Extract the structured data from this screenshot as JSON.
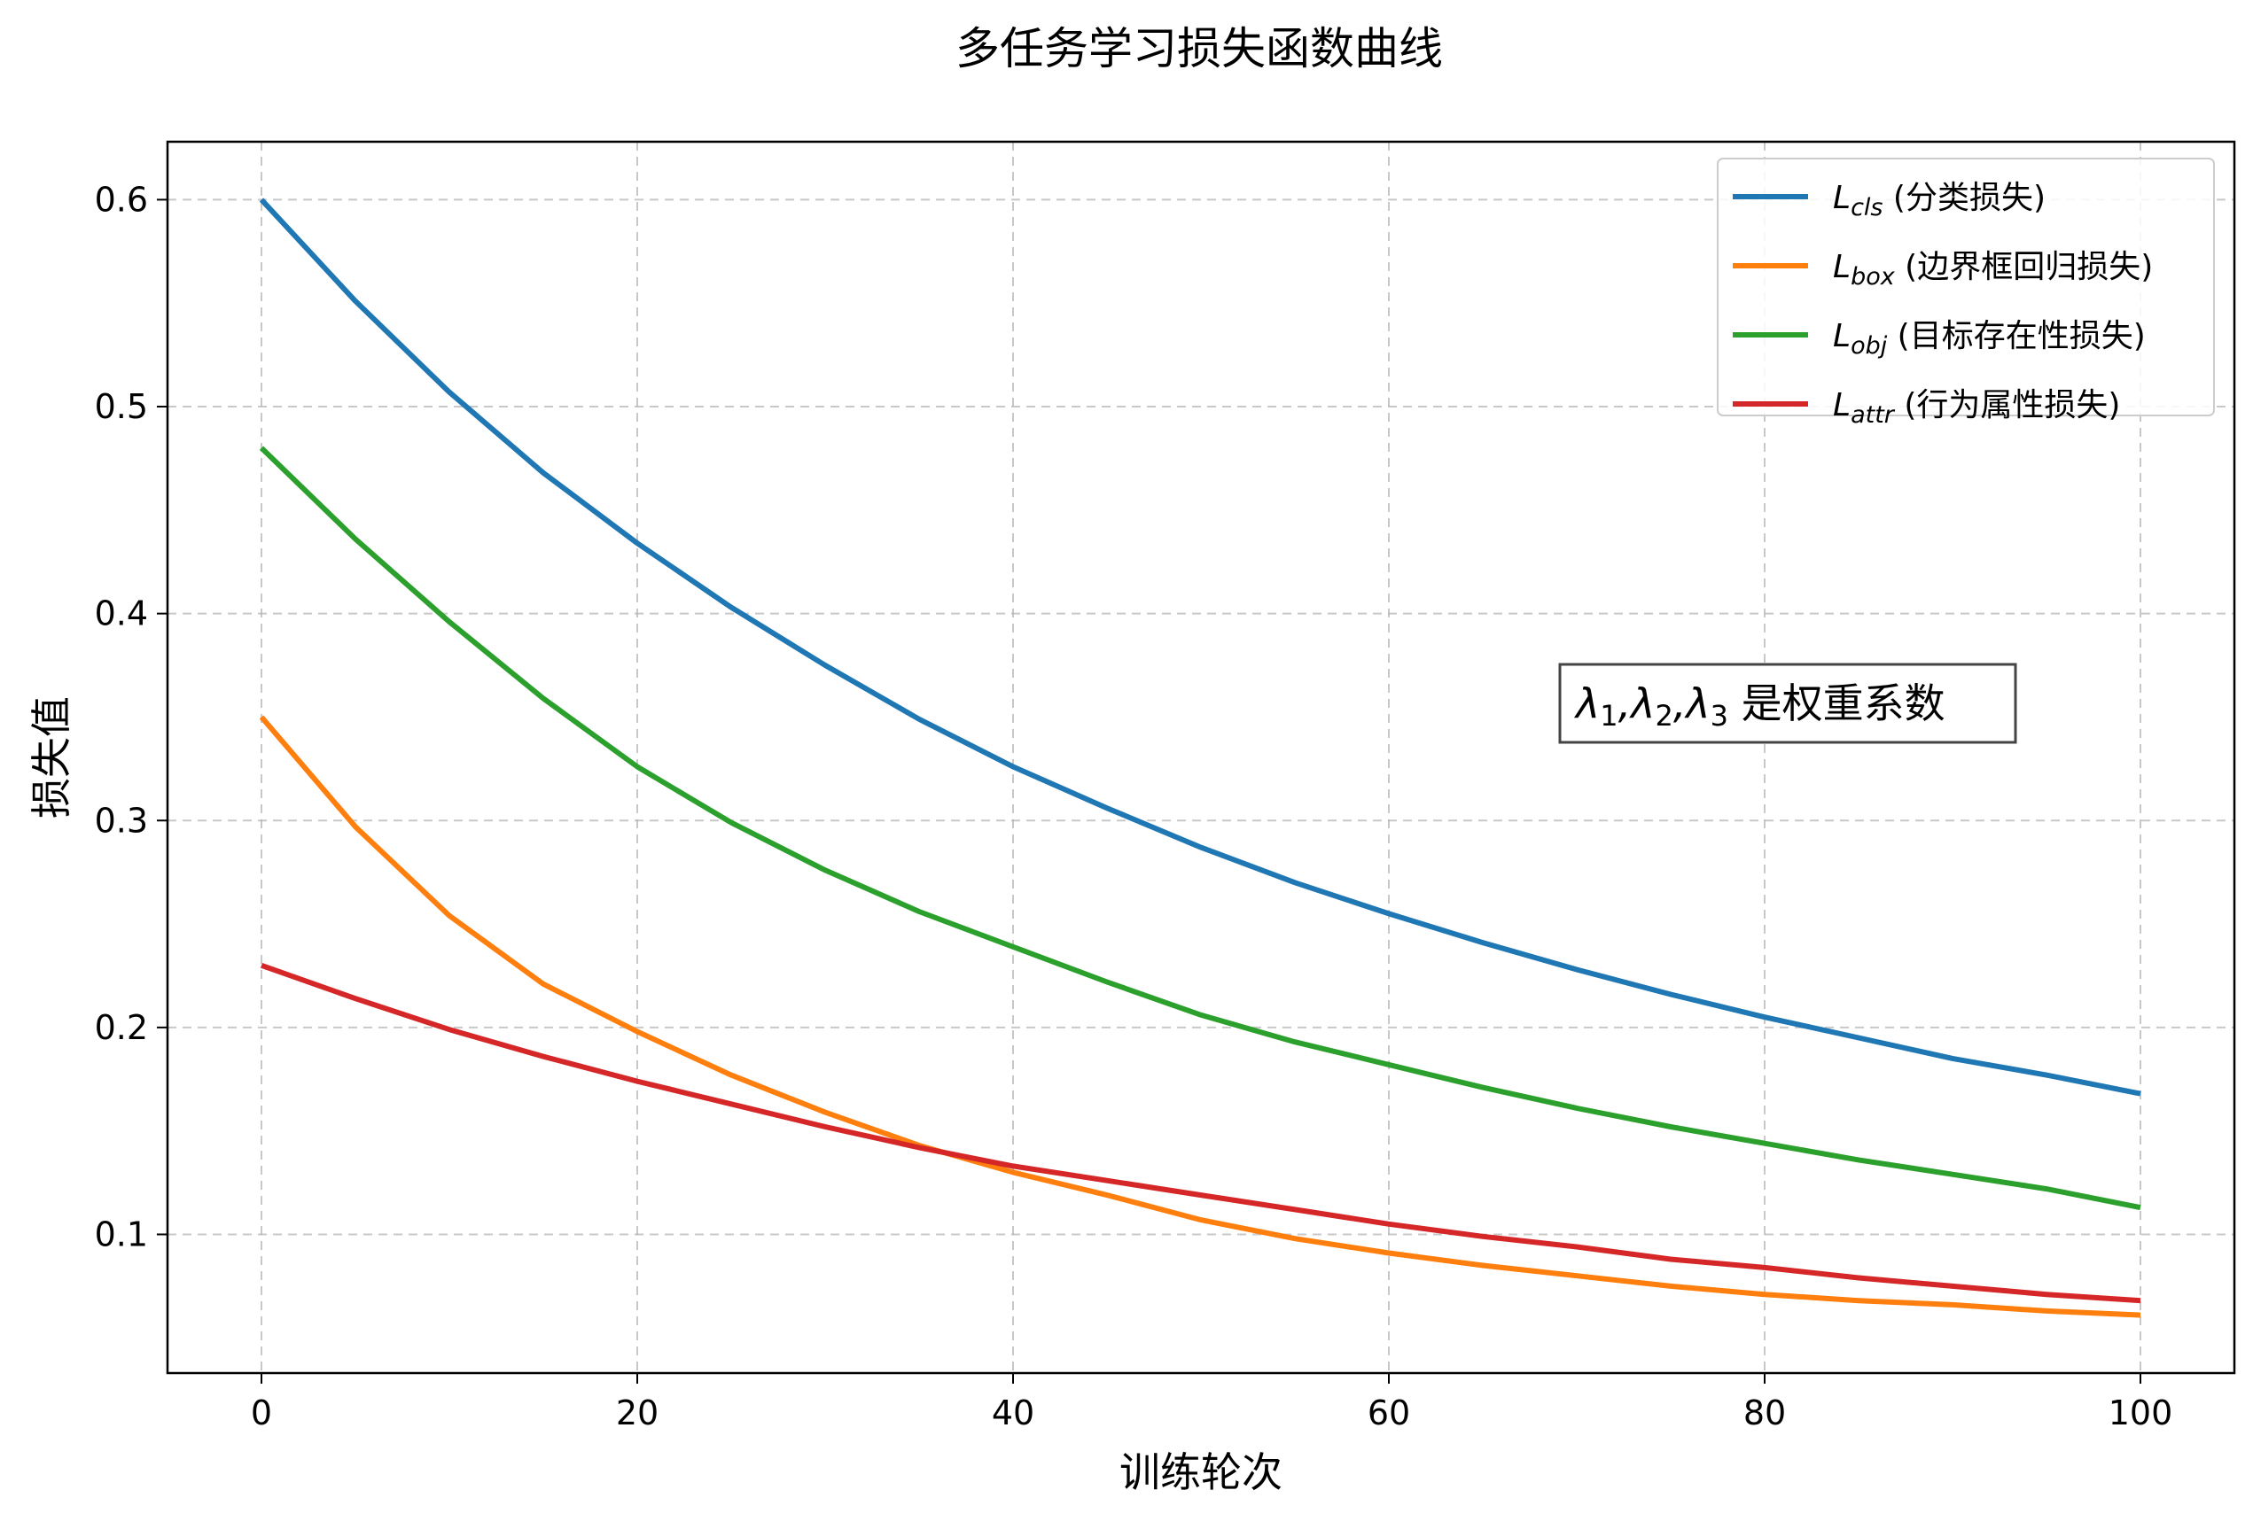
{
  "chart_data": {
    "type": "line",
    "title": "多任务学习损失函数曲线",
    "xlabel": "训练轮次",
    "ylabel": "损失值",
    "xlim": [
      -5,
      105
    ],
    "ylim": [
      0.033,
      0.628
    ],
    "x_ticks": [
      0,
      20,
      40,
      60,
      80,
      100
    ],
    "y_ticks": [
      0.1,
      0.2,
      0.3,
      0.4,
      0.5,
      0.6
    ],
    "x_tick_labels": [
      "0",
      "20",
      "40",
      "60",
      "80",
      "100"
    ],
    "y_tick_labels": [
      "0.1",
      "0.2",
      "0.3",
      "0.4",
      "0.5",
      "0.6"
    ],
    "grid": true,
    "legend_position": "top-right",
    "x": [
      0,
      5,
      10,
      15,
      20,
      25,
      30,
      35,
      40,
      45,
      50,
      55,
      60,
      65,
      70,
      75,
      80,
      85,
      90,
      95,
      100
    ],
    "series": [
      {
        "key": "cls",
        "symbol": "L",
        "subscript": "cls",
        "label": "(分类损失)",
        "color": "#1f77b4",
        "values": [
          0.6,
          0.551,
          0.507,
          0.468,
          0.434,
          0.403,
          0.375,
          0.349,
          0.326,
          0.306,
          0.287,
          0.27,
          0.255,
          0.241,
          0.228,
          0.216,
          0.205,
          0.195,
          0.185,
          0.177,
          0.168
        ]
      },
      {
        "key": "box",
        "symbol": "L",
        "subscript": "box",
        "label": "(边界框回归损失)",
        "color": "#ff7f0e",
        "values": [
          0.35,
          0.297,
          0.254,
          0.221,
          0.198,
          0.177,
          0.159,
          0.143,
          0.13,
          0.119,
          0.107,
          0.098,
          0.091,
          0.085,
          0.08,
          0.075,
          0.071,
          0.068,
          0.066,
          0.063,
          0.061
        ]
      },
      {
        "key": "obj",
        "symbol": "L",
        "subscript": "obj",
        "label": "(目标存在性损失)",
        "color": "#2ca02c",
        "values": [
          0.48,
          0.436,
          0.396,
          0.359,
          0.326,
          0.299,
          0.276,
          0.256,
          0.239,
          0.222,
          0.206,
          0.193,
          0.182,
          0.171,
          0.161,
          0.152,
          0.144,
          0.136,
          0.129,
          0.122,
          0.113
        ]
      },
      {
        "key": "attr",
        "symbol": "L",
        "subscript": "attr",
        "label": "(行为属性损失)",
        "color": "#d62728",
        "values": [
          0.23,
          0.214,
          0.199,
          0.186,
          0.174,
          0.163,
          0.152,
          0.142,
          0.133,
          0.126,
          0.119,
          0.112,
          0.105,
          0.099,
          0.094,
          0.088,
          0.084,
          0.079,
          0.075,
          0.071,
          0.068
        ]
      }
    ],
    "annotation": {
      "parts": [
        {
          "t": "λ"
        },
        {
          "sub": "1"
        },
        {
          "t": ",λ"
        },
        {
          "sub": "2"
        },
        {
          "t": ",λ"
        },
        {
          "sub": "3"
        },
        {
          "t": " 是权重系数"
        }
      ],
      "x": 82,
      "y": 0.35
    }
  }
}
